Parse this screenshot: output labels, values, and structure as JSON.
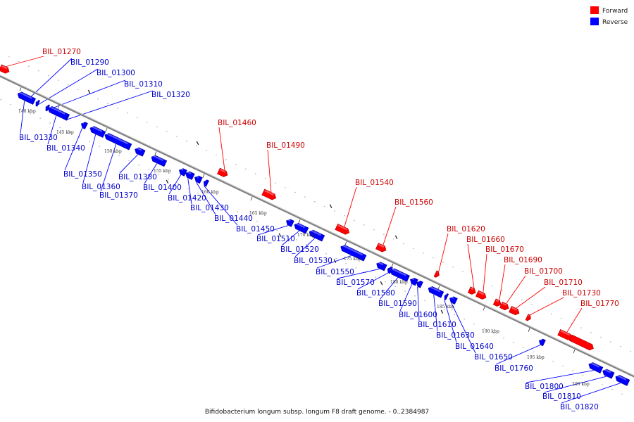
{
  "legend": [
    {
      "label": "Forward",
      "color": "#ff0000"
    },
    {
      "label": "Reverse",
      "color": "#0000ff"
    }
  ],
  "caption": "Bifidobacterium longum subsp. longum F8 draft genome. - 0..2384987",
  "colors": {
    "forward": "#ff0000",
    "reverse": "#0000ff",
    "backbone": "#888888"
  },
  "ticks": [
    "140 kbp",
    "145 kbp",
    "150 kbp",
    "155 kbp",
    "160 kbp",
    "165 kbp",
    "170 kbp",
    "175 kbp",
    "180 kbp",
    "185 kbp",
    "190 kbp",
    "195 kbp",
    "200 kbp"
  ],
  "features": [
    {
      "name": "BIL_01270",
      "strand": "forward"
    },
    {
      "name": "BIL_01290",
      "strand": "reverse"
    },
    {
      "name": "BIL_01300",
      "strand": "reverse"
    },
    {
      "name": "BIL_01310",
      "strand": "reverse"
    },
    {
      "name": "BIL_01320",
      "strand": "reverse"
    },
    {
      "name": "BIL_01330",
      "strand": "reverse"
    },
    {
      "name": "BIL_01340",
      "strand": "reverse"
    },
    {
      "name": "BIL_01350",
      "strand": "reverse"
    },
    {
      "name": "BIL_01360",
      "strand": "reverse"
    },
    {
      "name": "BIL_01370",
      "strand": "reverse"
    },
    {
      "name": "BIL_01380",
      "strand": "reverse"
    },
    {
      "name": "BIL_01400",
      "strand": "reverse"
    },
    {
      "name": "BIL_01420",
      "strand": "reverse"
    },
    {
      "name": "BIL_01430",
      "strand": "reverse"
    },
    {
      "name": "BIL_01440",
      "strand": "reverse"
    },
    {
      "name": "BIL_01450",
      "strand": "reverse"
    },
    {
      "name": "BIL_01460",
      "strand": "forward"
    },
    {
      "name": "BIL_01490",
      "strand": "forward"
    },
    {
      "name": "BIL_01510",
      "strand": "reverse"
    },
    {
      "name": "BIL_01520",
      "strand": "reverse"
    },
    {
      "name": "BIL_01530",
      "strand": "reverse"
    },
    {
      "name": "BIL_01540",
      "strand": "forward"
    },
    {
      "name": "BIL_01550",
      "strand": "reverse"
    },
    {
      "name": "BIL_01560",
      "strand": "forward"
    },
    {
      "name": "BIL_01570",
      "strand": "reverse"
    },
    {
      "name": "BIL_01580",
      "strand": "reverse"
    },
    {
      "name": "BIL_01590",
      "strand": "reverse"
    },
    {
      "name": "BIL_01600",
      "strand": "reverse"
    },
    {
      "name": "BIL_01610",
      "strand": "reverse"
    },
    {
      "name": "BIL_01620",
      "strand": "forward"
    },
    {
      "name": "BIL_01630",
      "strand": "reverse"
    },
    {
      "name": "BIL_01640",
      "strand": "reverse"
    },
    {
      "name": "BIL_01650",
      "strand": "reverse"
    },
    {
      "name": "BIL_01660",
      "strand": "forward"
    },
    {
      "name": "BIL_01670",
      "strand": "forward"
    },
    {
      "name": "BIL_01690",
      "strand": "forward"
    },
    {
      "name": "BIL_01700",
      "strand": "forward"
    },
    {
      "name": "BIL_01710",
      "strand": "forward"
    },
    {
      "name": "BIL_01730",
      "strand": "forward"
    },
    {
      "name": "BIL_01760",
      "strand": "reverse"
    },
    {
      "name": "BIL_01770",
      "strand": "forward"
    },
    {
      "name": "BIL_01800",
      "strand": "reverse"
    },
    {
      "name": "BIL_01810",
      "strand": "reverse"
    },
    {
      "name": "BIL_01820",
      "strand": "reverse"
    }
  ]
}
